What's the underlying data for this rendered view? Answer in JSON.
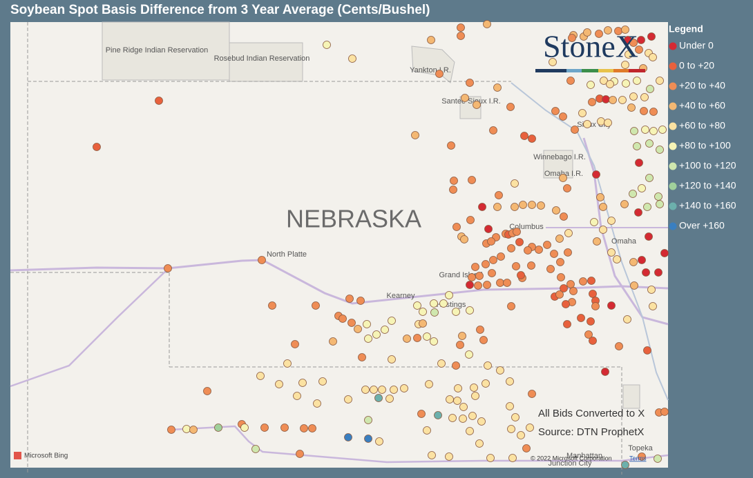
{
  "header": {
    "title": "Soybean Spot Basis Difference from 3 Year Average (Cents/Bushel)"
  },
  "legend": {
    "title": "Legend",
    "items": [
      {
        "label": "Under 0",
        "color": "#d42a33"
      },
      {
        "label": "0 to +20",
        "color": "#e8613d"
      },
      {
        "label": "+20 to +40",
        "color": "#ef8d55"
      },
      {
        "label": "+40 to +60",
        "color": "#f4b873"
      },
      {
        "label": "+60 to +80",
        "color": "#fbe2a2"
      },
      {
        "label": "+80 to +100",
        "color": "#f6f4b6"
      },
      {
        "label": "+100 to +120",
        "color": "#cfe7ae"
      },
      {
        "label": "+120 to +140",
        "color": "#a0d09b"
      },
      {
        "label": "+140 to +160",
        "color": "#6cb0ac"
      },
      {
        "label": "Over +160",
        "color": "#3a7fc0"
      }
    ]
  },
  "map": {
    "state": "NEBRASKA",
    "places": [
      "Pine Ridge Indian Reservation",
      "Rosebud Indian Reservation",
      "Yankton I.R.",
      "Santee Sioux I.R.",
      "Sioux City",
      "Winnebago I.R.",
      "Omaha I.R.",
      "Columbus",
      "Omaha",
      "North Platte",
      "Grand Island",
      "Kearney",
      "Hastings",
      "Manhattan",
      "Junction City",
      "Topeka"
    ],
    "logo": "StoneX",
    "attribution": "Microsoft Bing",
    "copyright": "© 2022 Microsoft Corporation",
    "terms": "Terms"
  },
  "notes": [
    "All Bids Converted to X",
    "Source: DTN ProphetX"
  ]
}
